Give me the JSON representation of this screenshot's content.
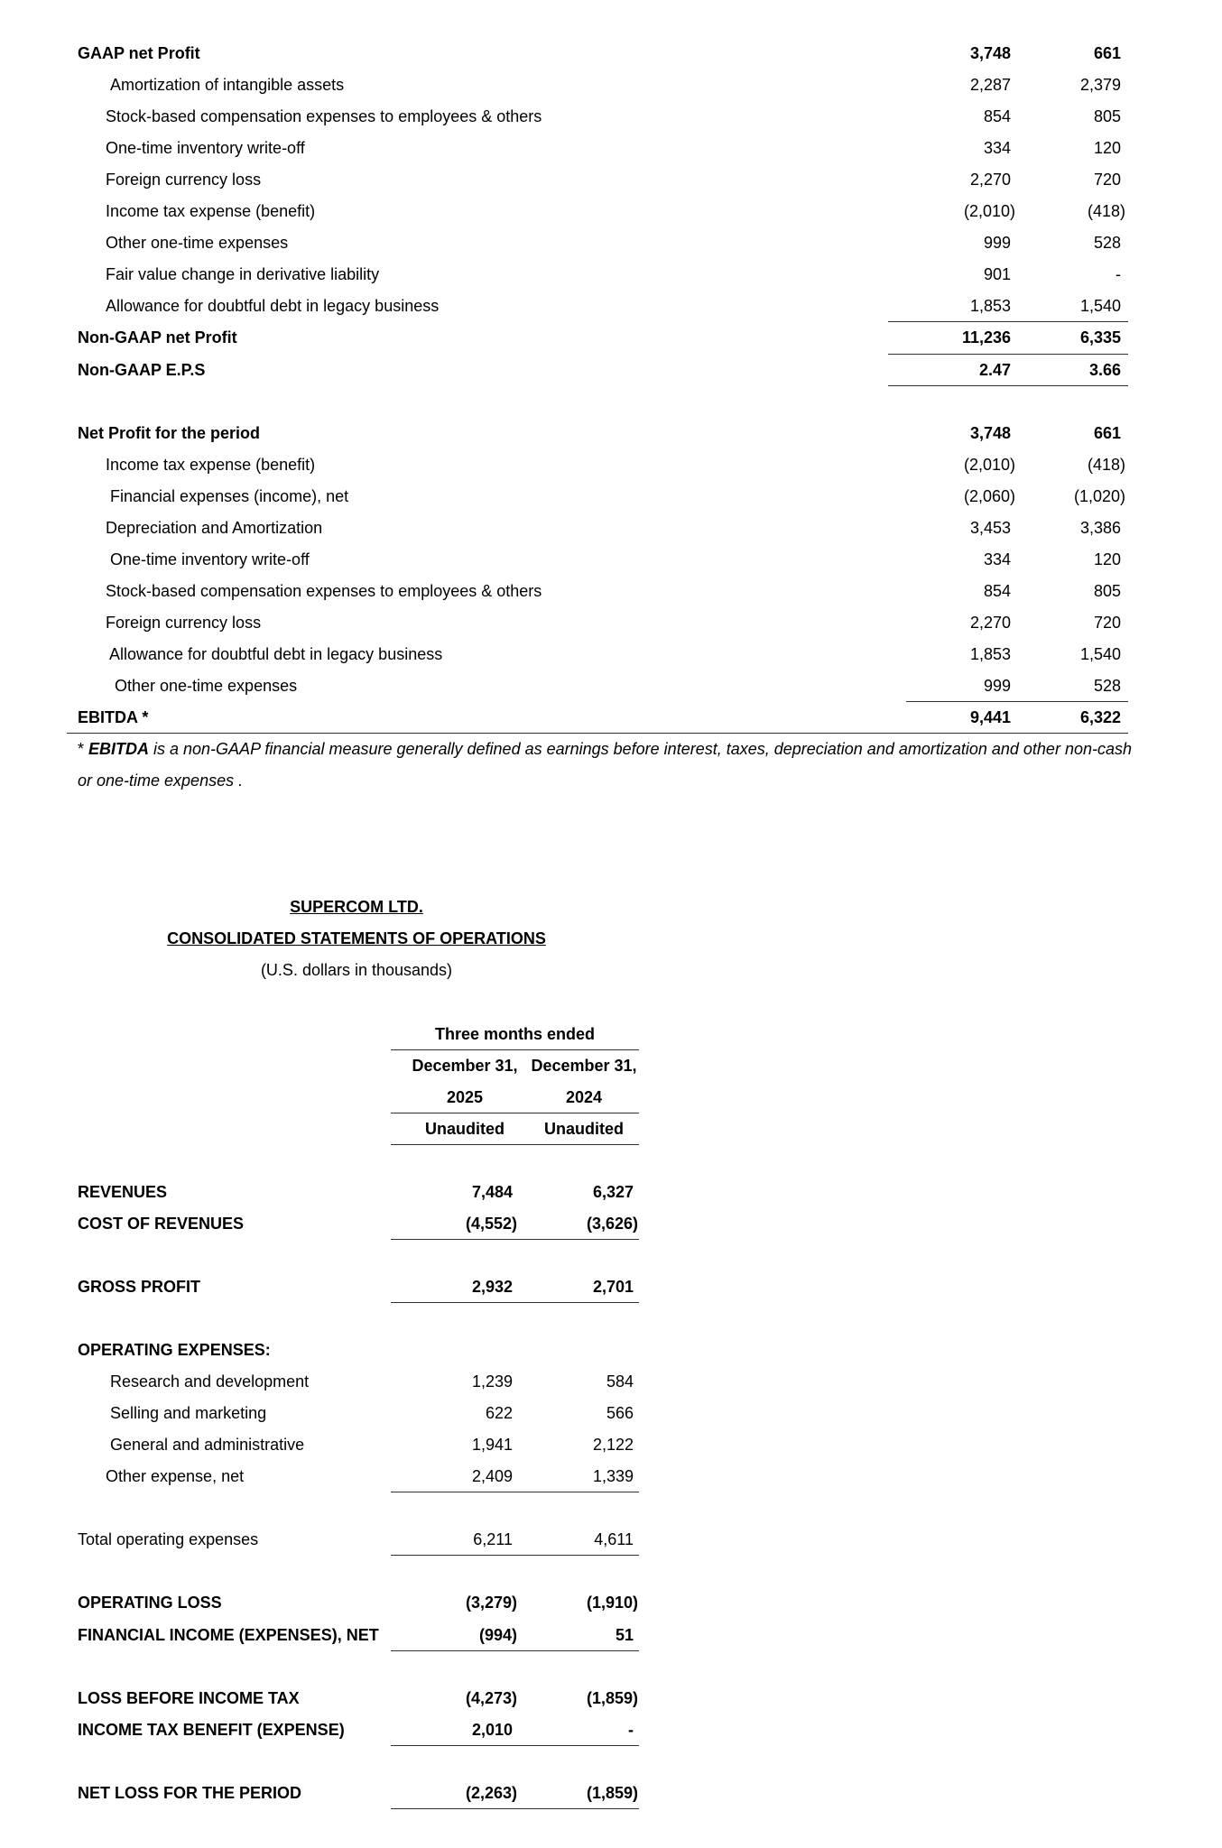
{
  "reconciliation": {
    "non_gaap_rows": [
      {
        "label": "GAAP net Profit",
        "v1": "3,748",
        "v2": "661",
        "bold": true
      },
      {
        "label": "Amortization of intangible assets",
        "v1": "2,287",
        "v2": "2,379"
      },
      {
        "label": "Stock-based compensation expenses to employees & others",
        "v1": "854",
        "v2": "805"
      },
      {
        "label": "One-time inventory write-off",
        "v1": "334",
        "v2": "120"
      },
      {
        "label": "Foreign currency loss",
        "v1": "2,270",
        "v2": "720"
      },
      {
        "label": "Income tax expense (benefit)",
        "v1": "(2,010)",
        "v2": "(418)"
      },
      {
        "label": "Other one-time expenses",
        "v1": "999",
        "v2": "528"
      },
      {
        "label": "Fair value change in derivative liability",
        "v1": "901",
        "v2": "-"
      },
      {
        "label": "Allowance for doubtful debt in legacy business",
        "v1": "1,853",
        "v2": "1,540"
      },
      {
        "label": "Non-GAAP net Profit",
        "v1": "11,236",
        "v2": "6,335",
        "bold": true
      },
      {
        "label": "Non-GAAP E.P.S",
        "v1": "2.47",
        "v2": "3.66",
        "bold": true
      }
    ],
    "ebitda_rows": [
      {
        "label": "Net Profit for the period",
        "v1": "3,748",
        "v2": "661",
        "bold": true
      },
      {
        "label": "Income tax expense (benefit)",
        "v1": "(2,010)",
        "v2": "(418)"
      },
      {
        "label": "Financial expenses (income), net",
        "v1": "(2,060)",
        "v2": "(1,020)"
      },
      {
        "label": "Depreciation and Amortization",
        "v1": "3,453",
        "v2": "3,386"
      },
      {
        "label": "One-time inventory write-off",
        "v1": "334",
        "v2": "120"
      },
      {
        "label": "Stock-based compensation expenses to employees & others",
        "v1": "854",
        "v2": "805"
      },
      {
        "label": "Foreign currency loss",
        "v1": "2,270",
        "v2": "720"
      },
      {
        "label": "Allowance for doubtful debt in legacy business",
        "v1": "1,853",
        "v2": "1,540"
      },
      {
        "label": "Other one-time expenses",
        "v1": "999",
        "v2": "528"
      },
      {
        "label": "EBITDA *",
        "v1": "9,441",
        "v2": "6,322",
        "bold": true
      }
    ],
    "footnote": {
      "star": "* ",
      "term": "EBITDA",
      "line1_rest": " is a non-GAAP financial measure generally defined as earnings before interest, taxes, depreciation and amortization and other non-cash",
      "line2": "or one-time expenses ."
    }
  },
  "statement": {
    "company": "SUPERCOM LTD.",
    "title": "CONSOLIDATED STATEMENTS OF OPERATIONS",
    "units": "(U.S. dollars in thousands)",
    "period_header": "Three months ended",
    "columns": [
      {
        "date": "December 31,",
        "year": "2025",
        "status": "Unaudited"
      },
      {
        "date": "December 31,",
        "year": "2024",
        "status": "Unaudited"
      }
    ],
    "rows": [
      {
        "label": "REVENUES",
        "v1": "7,484",
        "v2": "6,327",
        "bold": true
      },
      {
        "label": "COST OF REVENUES",
        "v1": "(4,552)",
        "v2": "(3,626)",
        "bold": true
      },
      {
        "label": "GROSS PROFIT",
        "v1": "2,932",
        "v2": "2,701",
        "bold": true
      },
      {
        "label": "OPERATING EXPENSES:",
        "v1": "",
        "v2": "",
        "bold": true
      },
      {
        "label": "Research and development",
        "v1": "1,239",
        "v2": "584"
      },
      {
        "label": "Selling and marketing",
        "v1": "622",
        "v2": "566"
      },
      {
        "label": "General and administrative",
        "v1": "1,941",
        "v2": "2,122"
      },
      {
        "label": "Other expense, net",
        "v1": "2,409",
        "v2": "1,339"
      },
      {
        "label": "Total operating expenses",
        "v1": "6,211",
        "v2": "4,611"
      },
      {
        "label": "OPERATING LOSS",
        "v1": "(3,279)",
        "v2": "(1,910)",
        "bold": true
      },
      {
        "label": "FINANCIAL INCOME (EXPENSES), NET",
        "v1": "(994)",
        "v2": "51",
        "bold": true
      },
      {
        "label": "LOSS BEFORE INCOME TAX",
        "v1": "(4,273)",
        "v2": "(1,859)",
        "bold": true
      },
      {
        "label": "INCOME TAX BENEFIT (EXPENSE)",
        "v1": "2,010",
        "v2": "-",
        "bold": true
      },
      {
        "label": "NET LOSS FOR THE PERIOD",
        "v1": "(2,263)",
        "v2": "(1,859)",
        "bold": true
      }
    ]
  }
}
